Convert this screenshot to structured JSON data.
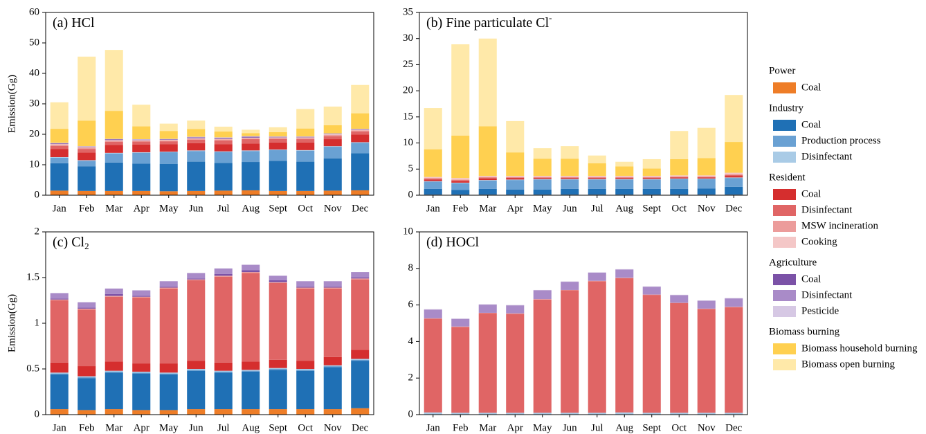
{
  "legend": {
    "groups": [
      {
        "title": "Power",
        "items": [
          {
            "name": "Coal",
            "color": "#ee7d27"
          }
        ]
      },
      {
        "title": "Industry",
        "items": [
          {
            "name": "Coal",
            "color": "#1f70b5"
          },
          {
            "name": "Production process",
            "color": "#6aa1d3"
          },
          {
            "name": "Disinfectant",
            "color": "#a9cbe6"
          }
        ]
      },
      {
        "title": "Resident",
        "items": [
          {
            "name": "Coal",
            "color": "#d52e2e"
          },
          {
            "name": "Disinfectant",
            "color": "#e06565"
          },
          {
            "name": "MSW incineration",
            "color": "#ec9c9b"
          },
          {
            "name": "Cooking",
            "color": "#f4c7c7"
          }
        ]
      },
      {
        "title": "Agriculture",
        "items": [
          {
            "name": "Coal",
            "color": "#7b52a7"
          },
          {
            "name": "Disinfectant",
            "color": "#a98bc8"
          },
          {
            "name": "Pesticide",
            "color": "#d6c8e4"
          }
        ]
      },
      {
        "title": "Biomass burning",
        "items": [
          {
            "name": "Biomass household burning",
            "color": "#ffd050"
          },
          {
            "name": "Biomass open burning",
            "color": "#ffe9a9"
          }
        ]
      }
    ]
  },
  "chart_data": [
    {
      "type": "stacked_bar",
      "title": "(a) HCl",
      "ylabel": "Emission(Gg)",
      "categories": [
        "Jan",
        "Feb",
        "Mar",
        "Apr",
        "May",
        "Jun",
        "Jul",
        "Aug",
        "Sept",
        "Oct",
        "Nov",
        "Dec"
      ],
      "ylim": [
        0,
        60
      ],
      "yticks": [
        0,
        10,
        20,
        30,
        40,
        50,
        60
      ],
      "series": [
        {
          "values": [
            1.5,
            1.4,
            1.4,
            1.4,
            1.3,
            1.4,
            1.5,
            1.6,
            1.4,
            1.4,
            1.5,
            1.6
          ]
        },
        {
          "values": [
            9,
            8.1,
            9.3,
            9,
            9,
            9.6,
            9.1,
            9.3,
            9.9,
            9.6,
            10.6,
            12.2
          ]
        },
        {
          "values": [
            1.8,
            1.8,
            3,
            3.5,
            3.8,
            3.5,
            3.6,
            3.6,
            3.5,
            3.6,
            3.8,
            3.4
          ]
        },
        {
          "values": [
            0.2,
            0.2,
            0.2,
            0.2,
            0.2,
            0.2,
            0.2,
            0.2,
            0.2,
            0.2,
            0.2,
            0.2
          ]
        },
        {
          "values": [
            2.7,
            2.5,
            2.6,
            2.5,
            2.4,
            2.4,
            2.3,
            2.3,
            2.3,
            2.5,
            2.3,
            2.5
          ]
        },
        {
          "values": [
            1,
            1.2,
            1,
            1,
            1,
            1.1,
            1.3,
            1.4,
            1.2,
            1.1,
            1,
            1
          ]
        },
        {
          "values": [
            0.4,
            0.4,
            0.4,
            0.3,
            0.3,
            0.3,
            0.3,
            0.3,
            0.3,
            0.4,
            0.4,
            0.4
          ]
        },
        {
          "values": [
            0.2,
            0.2,
            0.2,
            0.2,
            0.2,
            0.2,
            0.2,
            0.2,
            0.2,
            0.2,
            0.2,
            0.2
          ]
        },
        {
          "values": [
            0.2,
            0.1,
            0.2,
            0.1,
            0.1,
            0.2,
            0.2,
            0.2,
            0.1,
            0.1,
            0.1,
            0.1
          ]
        },
        {
          "values": [
            0.1,
            0.1,
            0.1,
            0.1,
            0.1,
            0.2,
            0.2,
            0.2,
            0.1,
            0.1,
            0.1,
            0.1
          ]
        },
        {
          "values": [
            0.1,
            0.1,
            0.1,
            0.1,
            0.1,
            0.1,
            0.1,
            0.1,
            0.1,
            0.1,
            0.1,
            0.1
          ]
        },
        {
          "values": [
            4.6,
            8.4,
            9.2,
            4.2,
            2.6,
            2.5,
            1.9,
            1,
            1.4,
            2.6,
            2.7,
            5.1
          ]
        },
        {
          "values": [
            8.7,
            21,
            20,
            7.1,
            2.4,
            2.8,
            1.6,
            1.1,
            1.6,
            6.4,
            6.1,
            9.3
          ]
        }
      ]
    },
    {
      "type": "stacked_bar",
      "title": "(b) Fine particulate Cl",
      "title_sup": "-",
      "categories": [
        "Jan",
        "Feb",
        "Mar",
        "Apr",
        "May",
        "Jun",
        "Jul",
        "Aug",
        "Sept",
        "Oct",
        "Nov",
        "Dec"
      ],
      "ylim": [
        0,
        35
      ],
      "yticks": [
        0,
        5,
        10,
        15,
        20,
        25,
        30,
        35
      ],
      "series": [
        {
          "values": [
            0.1,
            0.1,
            0.1,
            0.1,
            0.1,
            0.1,
            0.1,
            0.1,
            0.1,
            0.1,
            0.1,
            0.1
          ]
        },
        {
          "values": [
            1.1,
            0.9,
            1.1,
            1,
            1,
            1.1,
            1.1,
            1.1,
            1.1,
            1.1,
            1.2,
            1.5
          ]
        },
        {
          "values": [
            1.4,
            1.3,
            1.6,
            1.8,
            1.9,
            1.8,
            1.8,
            1.8,
            1.8,
            1.9,
            1.8,
            1.7
          ]
        },
        {
          "values": [
            0.1,
            0.1,
            0.1,
            0.1,
            0.1,
            0.1,
            0.1,
            0.1,
            0.1,
            0.1,
            0.1,
            0.1
          ]
        },
        {
          "values": [
            0.3,
            0.3,
            0.3,
            0.3,
            0.2,
            0.2,
            0.2,
            0.2,
            0.2,
            0.2,
            0.2,
            0.3
          ]
        },
        {
          "values": [
            0.2,
            0.2,
            0.2,
            0.1,
            0.1,
            0.1,
            0.1,
            0.1,
            0.1,
            0.1,
            0.1,
            0.2
          ]
        },
        {
          "values": [
            0.1,
            0.1,
            0.1,
            0.1,
            0.1,
            0.1,
            0.1,
            0.1,
            0.1,
            0.1,
            0.1,
            0.1
          ]
        },
        {
          "values": [
            0.2,
            0.3,
            0.2,
            0.2,
            0.2,
            0.2,
            0.2,
            0.2,
            0.2,
            0.2,
            0.2,
            0.3
          ]
        },
        {
          "values": [
            0,
            0,
            0,
            0,
            0,
            0,
            0,
            0,
            0,
            0,
            0,
            0
          ]
        },
        {
          "values": [
            0,
            0,
            0,
            0,
            0,
            0,
            0,
            0,
            0,
            0,
            0,
            0
          ]
        },
        {
          "values": [
            0,
            0,
            0,
            0,
            0,
            0,
            0,
            0,
            0,
            0,
            0,
            0
          ]
        },
        {
          "values": [
            5.3,
            8.1,
            9.5,
            4.5,
            3.3,
            3.3,
            2.4,
            1.8,
            1.4,
            3.1,
            3.3,
            5.9
          ]
        },
        {
          "values": [
            7.9,
            17.5,
            16.8,
            6,
            2,
            2.4,
            1.5,
            0.9,
            1.8,
            5.4,
            5.8,
            9
          ]
        }
      ]
    },
    {
      "type": "stacked_bar",
      "title": "(c) Cl",
      "title_sub": "2",
      "ylabel": "Emission(Gg)",
      "categories": [
        "Jan",
        "Feb",
        "Mar",
        "Apr",
        "May",
        "Jun",
        "Jul",
        "Aug",
        "Sept",
        "Oct",
        "Nov",
        "Dec"
      ],
      "ylim": [
        0,
        2
      ],
      "yticks": [
        0,
        0.5,
        1,
        1.5,
        2
      ],
      "series": [
        {
          "values": [
            0.06,
            0.05,
            0.06,
            0.05,
            0.05,
            0.06,
            0.06,
            0.06,
            0.06,
            0.06,
            0.06,
            0.07
          ]
        },
        {
          "values": [
            0.38,
            0.35,
            0.4,
            0.4,
            0.39,
            0.42,
            0.4,
            0.41,
            0.43,
            0.42,
            0.46,
            0.52
          ]
        },
        {
          "values": [
            0.01,
            0.01,
            0.01,
            0.01,
            0.01,
            0.01,
            0.01,
            0.01,
            0.01,
            0.01,
            0.01,
            0.01
          ]
        },
        {
          "values": [
            0.01,
            0.01,
            0.01,
            0.01,
            0.01,
            0.01,
            0.01,
            0.01,
            0.01,
            0.01,
            0.01,
            0.01
          ]
        },
        {
          "values": [
            0.11,
            0.11,
            0.1,
            0.09,
            0.1,
            0.09,
            0.09,
            0.09,
            0.09,
            0.09,
            0.09,
            0.1
          ]
        },
        {
          "values": [
            0.68,
            0.62,
            0.71,
            0.72,
            0.82,
            0.88,
            0.94,
            0.97,
            0.84,
            0.79,
            0.75,
            0.77
          ]
        },
        {
          "values": [
            0.01,
            0.01,
            0.01,
            0.01,
            0.01,
            0.01,
            0.01,
            0.01,
            0.01,
            0.01,
            0.01,
            0.01
          ]
        },
        {
          "values": [
            0,
            0,
            0,
            0,
            0,
            0,
            0,
            0,
            0,
            0,
            0,
            0
          ]
        },
        {
          "values": [
            0.01,
            0.01,
            0.02,
            0.01,
            0.01,
            0.01,
            0.02,
            0.02,
            0.02,
            0.01,
            0.01,
            0.01
          ]
        },
        {
          "values": [
            0.06,
            0.06,
            0.06,
            0.06,
            0.06,
            0.06,
            0.06,
            0.06,
            0.05,
            0.06,
            0.06,
            0.06
          ]
        },
        {
          "values": [
            0,
            0,
            0,
            0,
            0,
            0,
            0,
            0,
            0,
            0,
            0,
            0
          ]
        },
        {
          "values": [
            0,
            0,
            0,
            0,
            0,
            0,
            0,
            0,
            0,
            0,
            0,
            0
          ]
        },
        {
          "values": [
            0,
            0,
            0,
            0,
            0,
            0,
            0,
            0,
            0,
            0,
            0,
            0
          ]
        }
      ]
    },
    {
      "type": "stacked_bar",
      "title": "(d) HOCl",
      "categories": [
        "Jan",
        "Feb",
        "Mar",
        "Apr",
        "May",
        "Jun",
        "Jul",
        "Aug",
        "Sept",
        "Oct",
        "Nov",
        "Dec"
      ],
      "ylim": [
        0,
        10
      ],
      "yticks": [
        0,
        2,
        4,
        6,
        8,
        10
      ],
      "series": [
        {
          "values": [
            0,
            0,
            0,
            0,
            0,
            0,
            0,
            0,
            0,
            0,
            0,
            0
          ]
        },
        {
          "values": [
            0,
            0,
            0,
            0,
            0,
            0,
            0,
            0,
            0,
            0,
            0,
            0
          ]
        },
        {
          "values": [
            0,
            0,
            0,
            0,
            0,
            0,
            0,
            0,
            0,
            0,
            0,
            0
          ]
        },
        {
          "values": [
            0.12,
            0.1,
            0.1,
            0.1,
            0.1,
            0.1,
            0.1,
            0.12,
            0.1,
            0.1,
            0.1,
            0.1
          ]
        },
        {
          "values": [
            0,
            0,
            0,
            0,
            0,
            0,
            0,
            0,
            0,
            0,
            0,
            0
          ]
        },
        {
          "values": [
            5.13,
            4.7,
            5.45,
            5.42,
            6.2,
            6.7,
            7.2,
            7.35,
            6.45,
            6,
            5.68,
            5.78
          ]
        },
        {
          "values": [
            0.02,
            0.02,
            0.02,
            0.02,
            0.02,
            0.02,
            0.02,
            0.02,
            0.02,
            0.02,
            0.02,
            0.02
          ]
        },
        {
          "values": [
            0,
            0,
            0,
            0,
            0,
            0,
            0,
            0,
            0,
            0,
            0,
            0
          ]
        },
        {
          "values": [
            0,
            0,
            0,
            0,
            0,
            0,
            0,
            0,
            0,
            0,
            0,
            0
          ]
        },
        {
          "values": [
            0.48,
            0.42,
            0.45,
            0.44,
            0.48,
            0.45,
            0.45,
            0.45,
            0.43,
            0.42,
            0.43,
            0.46
          ]
        },
        {
          "values": [
            0.02,
            0.02,
            0.02,
            0.02,
            0.02,
            0.02,
            0.02,
            0.02,
            0.02,
            0.02,
            0.02,
            0.02
          ]
        },
        {
          "values": [
            0,
            0,
            0,
            0,
            0,
            0,
            0,
            0,
            0,
            0,
            0,
            0
          ]
        },
        {
          "values": [
            0,
            0,
            0,
            0,
            0,
            0,
            0,
            0,
            0,
            0,
            0,
            0
          ]
        }
      ]
    }
  ]
}
